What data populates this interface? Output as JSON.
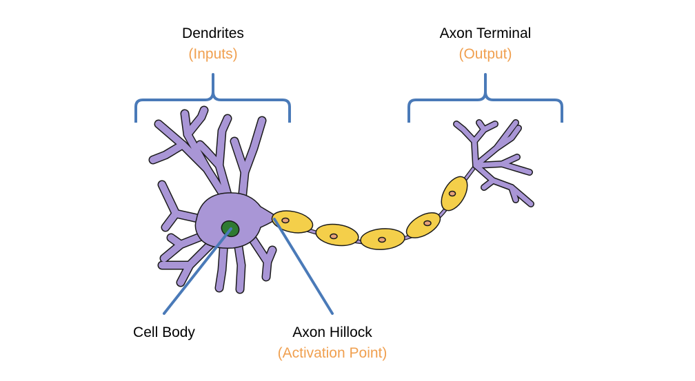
{
  "labels": {
    "dendrites": {
      "title": "Dendrites",
      "subtitle": "(Inputs)"
    },
    "axon_terminal": {
      "title": "Axon Terminal",
      "subtitle": "(Output)"
    },
    "cell_body": {
      "title": "Cell Body"
    },
    "axon_hillock": {
      "title": "Axon Hillock",
      "subtitle": "(Activation Point)"
    }
  },
  "colors": {
    "text": "#000000",
    "subtitle": "#f0a050",
    "bracket_and_pointer": "#4a7ab8",
    "neuron_fill": "#a996d6",
    "neuron_stroke": "#1a1a1a",
    "nucleus": "#2f7a32",
    "myelin_fill": "#f4cf4a",
    "myelin_nucleus": "#e5a07a"
  }
}
